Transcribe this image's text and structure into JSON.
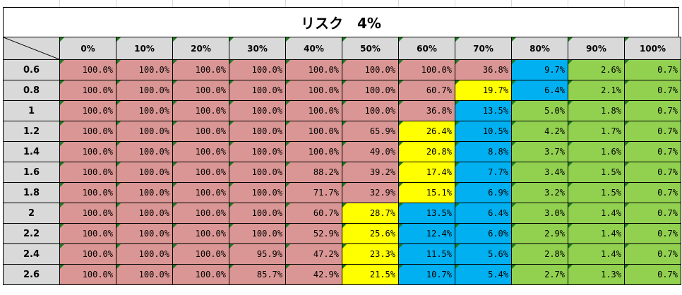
{
  "title": "リスク　4%",
  "colors": {
    "red": "#da9694",
    "yellow": "#ffff00",
    "blue": "#00b0f0",
    "green": "#92d050",
    "header_bg": "#d9d9d9",
    "marker": "#1e7b1e"
  },
  "columns": [
    "0%",
    "10%",
    "20%",
    "30%",
    "40%",
    "50%",
    "60%",
    "70%",
    "80%",
    "90%",
    "100%"
  ],
  "rows": [
    {
      "label": "0.6",
      "cells": [
        {
          "v": "100.0%",
          "c": "red"
        },
        {
          "v": "100.0%",
          "c": "red"
        },
        {
          "v": "100.0%",
          "c": "red"
        },
        {
          "v": "100.0%",
          "c": "red"
        },
        {
          "v": "100.0%",
          "c": "red"
        },
        {
          "v": "100.0%",
          "c": "red"
        },
        {
          "v": "100.0%",
          "c": "red"
        },
        {
          "v": "36.8%",
          "c": "red"
        },
        {
          "v": "9.7%",
          "c": "blue"
        },
        {
          "v": "2.6%",
          "c": "green"
        },
        {
          "v": "0.7%",
          "c": "green"
        }
      ]
    },
    {
      "label": "0.8",
      "cells": [
        {
          "v": "100.0%",
          "c": "red"
        },
        {
          "v": "100.0%",
          "c": "red"
        },
        {
          "v": "100.0%",
          "c": "red"
        },
        {
          "v": "100.0%",
          "c": "red"
        },
        {
          "v": "100.0%",
          "c": "red"
        },
        {
          "v": "100.0%",
          "c": "red"
        },
        {
          "v": "60.7%",
          "c": "red"
        },
        {
          "v": "19.7%",
          "c": "yellow"
        },
        {
          "v": "6.4%",
          "c": "blue"
        },
        {
          "v": "2.1%",
          "c": "green"
        },
        {
          "v": "0.7%",
          "c": "green"
        }
      ]
    },
    {
      "label": "1",
      "cells": [
        {
          "v": "100.0%",
          "c": "red"
        },
        {
          "v": "100.0%",
          "c": "red"
        },
        {
          "v": "100.0%",
          "c": "red"
        },
        {
          "v": "100.0%",
          "c": "red"
        },
        {
          "v": "100.0%",
          "c": "red"
        },
        {
          "v": "100.0%",
          "c": "red"
        },
        {
          "v": "36.8%",
          "c": "red"
        },
        {
          "v": "13.5%",
          "c": "blue"
        },
        {
          "v": "5.0%",
          "c": "green"
        },
        {
          "v": "1.8%",
          "c": "green"
        },
        {
          "v": "0.7%",
          "c": "green"
        }
      ]
    },
    {
      "label": "1.2",
      "cells": [
        {
          "v": "100.0%",
          "c": "red"
        },
        {
          "v": "100.0%",
          "c": "red"
        },
        {
          "v": "100.0%",
          "c": "red"
        },
        {
          "v": "100.0%",
          "c": "red"
        },
        {
          "v": "100.0%",
          "c": "red"
        },
        {
          "v": "65.9%",
          "c": "red"
        },
        {
          "v": "26.4%",
          "c": "yellow"
        },
        {
          "v": "10.5%",
          "c": "blue"
        },
        {
          "v": "4.2%",
          "c": "green"
        },
        {
          "v": "1.7%",
          "c": "green"
        },
        {
          "v": "0.7%",
          "c": "green"
        }
      ]
    },
    {
      "label": "1.4",
      "cells": [
        {
          "v": "100.0%",
          "c": "red"
        },
        {
          "v": "100.0%",
          "c": "red"
        },
        {
          "v": "100.0%",
          "c": "red"
        },
        {
          "v": "100.0%",
          "c": "red"
        },
        {
          "v": "100.0%",
          "c": "red"
        },
        {
          "v": "49.0%",
          "c": "red"
        },
        {
          "v": "20.8%",
          "c": "yellow"
        },
        {
          "v": "8.8%",
          "c": "blue"
        },
        {
          "v": "3.7%",
          "c": "green"
        },
        {
          "v": "1.6%",
          "c": "green"
        },
        {
          "v": "0.7%",
          "c": "green"
        }
      ]
    },
    {
      "label": "1.6",
      "cells": [
        {
          "v": "100.0%",
          "c": "red"
        },
        {
          "v": "100.0%",
          "c": "red"
        },
        {
          "v": "100.0%",
          "c": "red"
        },
        {
          "v": "100.0%",
          "c": "red"
        },
        {
          "v": "88.2%",
          "c": "red"
        },
        {
          "v": "39.2%",
          "c": "red"
        },
        {
          "v": "17.4%",
          "c": "yellow"
        },
        {
          "v": "7.7%",
          "c": "blue"
        },
        {
          "v": "3.4%",
          "c": "green"
        },
        {
          "v": "1.5%",
          "c": "green"
        },
        {
          "v": "0.7%",
          "c": "green"
        }
      ]
    },
    {
      "label": "1.8",
      "cells": [
        {
          "v": "100.0%",
          "c": "red"
        },
        {
          "v": "100.0%",
          "c": "red"
        },
        {
          "v": "100.0%",
          "c": "red"
        },
        {
          "v": "100.0%",
          "c": "red"
        },
        {
          "v": "71.7%",
          "c": "red"
        },
        {
          "v": "32.9%",
          "c": "red"
        },
        {
          "v": "15.1%",
          "c": "yellow"
        },
        {
          "v": "6.9%",
          "c": "blue"
        },
        {
          "v": "3.2%",
          "c": "green"
        },
        {
          "v": "1.5%",
          "c": "green"
        },
        {
          "v": "0.7%",
          "c": "green"
        }
      ]
    },
    {
      "label": "2",
      "cells": [
        {
          "v": "100.0%",
          "c": "red"
        },
        {
          "v": "100.0%",
          "c": "red"
        },
        {
          "v": "100.0%",
          "c": "red"
        },
        {
          "v": "100.0%",
          "c": "red"
        },
        {
          "v": "60.7%",
          "c": "red"
        },
        {
          "v": "28.7%",
          "c": "yellow"
        },
        {
          "v": "13.5%",
          "c": "blue"
        },
        {
          "v": "6.4%",
          "c": "blue"
        },
        {
          "v": "3.0%",
          "c": "green"
        },
        {
          "v": "1.4%",
          "c": "green"
        },
        {
          "v": "0.7%",
          "c": "green"
        }
      ]
    },
    {
      "label": "2.2",
      "cells": [
        {
          "v": "100.0%",
          "c": "red"
        },
        {
          "v": "100.0%",
          "c": "red"
        },
        {
          "v": "100.0%",
          "c": "red"
        },
        {
          "v": "100.0%",
          "c": "red"
        },
        {
          "v": "52.9%",
          "c": "red"
        },
        {
          "v": "25.6%",
          "c": "yellow"
        },
        {
          "v": "12.4%",
          "c": "blue"
        },
        {
          "v": "6.0%",
          "c": "blue"
        },
        {
          "v": "2.9%",
          "c": "green"
        },
        {
          "v": "1.4%",
          "c": "green"
        },
        {
          "v": "0.7%",
          "c": "green"
        }
      ]
    },
    {
      "label": "2.4",
      "cells": [
        {
          "v": "100.0%",
          "c": "red"
        },
        {
          "v": "100.0%",
          "c": "red"
        },
        {
          "v": "100.0%",
          "c": "red"
        },
        {
          "v": "95.9%",
          "c": "red"
        },
        {
          "v": "47.2%",
          "c": "red"
        },
        {
          "v": "23.3%",
          "c": "yellow"
        },
        {
          "v": "11.5%",
          "c": "blue"
        },
        {
          "v": "5.6%",
          "c": "blue"
        },
        {
          "v": "2.8%",
          "c": "green"
        },
        {
          "v": "1.4%",
          "c": "green"
        },
        {
          "v": "0.7%",
          "c": "green"
        }
      ]
    },
    {
      "label": "2.6",
      "cells": [
        {
          "v": "100.0%",
          "c": "red"
        },
        {
          "v": "100.0%",
          "c": "red"
        },
        {
          "v": "100.0%",
          "c": "red"
        },
        {
          "v": "85.7%",
          "c": "red"
        },
        {
          "v": "42.9%",
          "c": "red"
        },
        {
          "v": "21.5%",
          "c": "yellow"
        },
        {
          "v": "10.7%",
          "c": "blue"
        },
        {
          "v": "5.4%",
          "c": "blue"
        },
        {
          "v": "2.7%",
          "c": "green"
        },
        {
          "v": "1.3%",
          "c": "green"
        },
        {
          "v": "0.7%",
          "c": "green"
        }
      ]
    }
  ]
}
